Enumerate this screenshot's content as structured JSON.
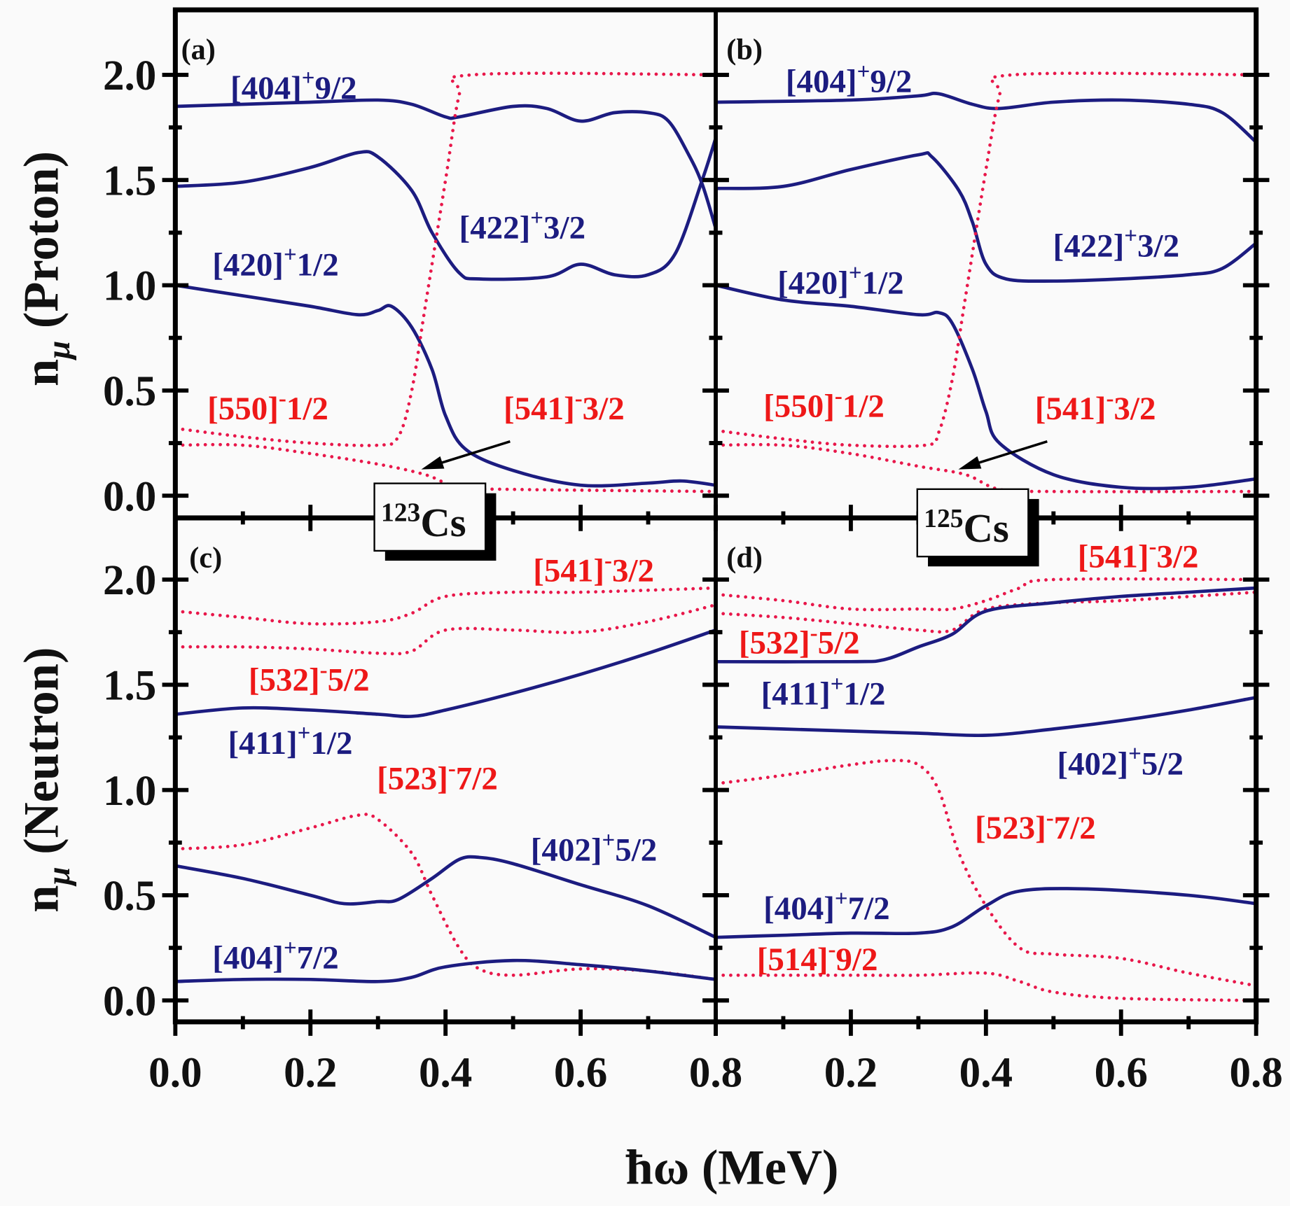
{
  "colors": {
    "proton_positive": "#1c1c80",
    "negative": "#ee1818",
    "dotted": "#e8174a"
  },
  "chart_data": [
    {
      "type": "line",
      "panel": "(a)",
      "nucleus": "123Cs",
      "ylabel": "n_μ (Proton)",
      "xlabel": "ħω (MeV)",
      "xlim": [
        0,
        0.8
      ],
      "ylim": [
        -0.1,
        2.3
      ],
      "xticks": [
        "0.0",
        "0.2",
        "0.4",
        "0.6",
        "0.8"
      ],
      "yticks": [
        "0.0",
        "0.5",
        "1.0",
        "1.5",
        "2.0"
      ],
      "series": [
        {
          "name": "[404]+9/2",
          "style": "solid",
          "x": [
            0,
            0.1,
            0.2,
            0.3,
            0.35,
            0.4,
            0.42,
            0.5,
            0.55,
            0.6,
            0.65,
            0.7,
            0.73,
            0.76,
            0.78,
            0.8
          ],
          "y": [
            1.85,
            1.86,
            1.87,
            1.88,
            1.86,
            1.8,
            1.8,
            1.85,
            1.84,
            1.78,
            1.82,
            1.82,
            1.78,
            1.62,
            1.48,
            1.27
          ]
        },
        {
          "name": "[422]+3/2",
          "style": "solid",
          "x": [
            0,
            0.1,
            0.2,
            0.27,
            0.3,
            0.35,
            0.38,
            0.42,
            0.45,
            0.55,
            0.6,
            0.65,
            0.7,
            0.74,
            0.78,
            0.8
          ],
          "y": [
            1.47,
            1.49,
            1.56,
            1.63,
            1.61,
            1.45,
            1.25,
            1.06,
            1.03,
            1.04,
            1.1,
            1.05,
            1.05,
            1.15,
            1.5,
            1.7
          ]
        },
        {
          "name": "[420]+1/2",
          "style": "solid",
          "x": [
            0,
            0.1,
            0.2,
            0.27,
            0.3,
            0.32,
            0.35,
            0.38,
            0.4,
            0.43,
            0.5,
            0.6,
            0.7,
            0.75,
            0.8
          ],
          "y": [
            1.0,
            0.95,
            0.9,
            0.86,
            0.88,
            0.9,
            0.8,
            0.6,
            0.38,
            0.22,
            0.12,
            0.05,
            0.06,
            0.07,
            0.05
          ]
        },
        {
          "name": "[550]-1/2",
          "style": "dotted",
          "x": [
            0,
            0.1,
            0.2,
            0.3,
            0.33,
            0.35,
            0.37,
            0.4,
            0.42,
            0.44,
            0.8
          ],
          "y": [
            0.32,
            0.28,
            0.25,
            0.24,
            0.28,
            0.5,
            0.9,
            1.5,
            1.9,
            2.0,
            2.0
          ]
        },
        {
          "name": "[541]-3/2",
          "style": "dotted",
          "x": [
            0,
            0.1,
            0.2,
            0.3,
            0.37,
            0.42,
            0.5,
            0.8
          ],
          "y": [
            0.24,
            0.24,
            0.2,
            0.15,
            0.1,
            0.04,
            0.03,
            0.02
          ]
        }
      ],
      "labels": [
        {
          "base": "[404]",
          "sup": "+",
          "rest": "9/2"
        },
        {
          "base": "[422]",
          "sup": "+",
          "rest": "3/2"
        },
        {
          "base": "[420]",
          "sup": "+",
          "rest": "1/2"
        },
        {
          "base": "[550]",
          "sup": "-",
          "rest": "1/2"
        },
        {
          "base": "[541]",
          "sup": "-",
          "rest": "3/2"
        }
      ]
    },
    {
      "type": "line",
      "panel": "(b)",
      "nucleus": "125Cs",
      "xlim": [
        0,
        0.8
      ],
      "ylim": [
        -0.1,
        2.3
      ],
      "series": [
        {
          "name": "[404]+9/2",
          "style": "solid",
          "x": [
            0,
            0.2,
            0.3,
            0.33,
            0.38,
            0.42,
            0.5,
            0.6,
            0.7,
            0.75,
            0.8
          ],
          "y": [
            1.87,
            1.88,
            1.9,
            1.91,
            1.86,
            1.84,
            1.87,
            1.88,
            1.86,
            1.82,
            1.68
          ]
        },
        {
          "name": "[422]+3/2",
          "style": "solid",
          "x": [
            0,
            0.1,
            0.2,
            0.3,
            0.32,
            0.36,
            0.38,
            0.4,
            0.43,
            0.5,
            0.6,
            0.7,
            0.75,
            0.8
          ],
          "y": [
            1.46,
            1.47,
            1.55,
            1.62,
            1.61,
            1.45,
            1.3,
            1.1,
            1.03,
            1.02,
            1.03,
            1.05,
            1.08,
            1.2
          ]
        },
        {
          "name": "[420]+1/2",
          "style": "solid",
          "x": [
            0,
            0.1,
            0.2,
            0.3,
            0.33,
            0.35,
            0.38,
            0.4,
            0.42,
            0.5,
            0.6,
            0.7,
            0.8
          ],
          "y": [
            1.0,
            0.93,
            0.9,
            0.86,
            0.87,
            0.82,
            0.6,
            0.4,
            0.25,
            0.1,
            0.04,
            0.04,
            0.08
          ]
        },
        {
          "name": "[550]-1/2",
          "style": "dotted",
          "x": [
            0,
            0.1,
            0.2,
            0.31,
            0.33,
            0.35,
            0.37,
            0.4,
            0.42,
            0.44,
            0.8
          ],
          "y": [
            0.31,
            0.27,
            0.24,
            0.24,
            0.3,
            0.55,
            0.95,
            1.55,
            1.9,
            2.0,
            2.0
          ]
        },
        {
          "name": "[541]-3/2",
          "style": "dotted",
          "x": [
            0,
            0.1,
            0.2,
            0.3,
            0.37,
            0.42,
            0.5,
            0.8
          ],
          "y": [
            0.24,
            0.24,
            0.2,
            0.14,
            0.1,
            0.03,
            0.02,
            0.02
          ]
        }
      ],
      "labels": [
        {
          "base": "[404]",
          "sup": "+",
          "rest": "9/2"
        },
        {
          "base": "[422]",
          "sup": "+",
          "rest": "3/2"
        },
        {
          "base": "[420]",
          "sup": "+",
          "rest": "1/2"
        },
        {
          "base": "[550]",
          "sup": "-",
          "rest": "1/2"
        },
        {
          "base": "[541]",
          "sup": "-",
          "rest": "3/2"
        }
      ]
    },
    {
      "type": "line",
      "panel": "(c)",
      "nucleus": "123Cs",
      "ylabel": "n_μ (Neutron)",
      "xlim": [
        0,
        0.8
      ],
      "ylim": [
        -0.1,
        2.3
      ],
      "series": [
        {
          "name": "[541]-3/2",
          "style": "dotted",
          "x": [
            0,
            0.1,
            0.2,
            0.3,
            0.35,
            0.4,
            0.5,
            0.6,
            0.8
          ],
          "y": [
            1.85,
            1.82,
            1.79,
            1.8,
            1.84,
            1.92,
            1.94,
            1.94,
            1.96
          ]
        },
        {
          "name": "[532]-5/2",
          "style": "dotted",
          "x": [
            0,
            0.1,
            0.2,
            0.3,
            0.35,
            0.4,
            0.5,
            0.6,
            0.7,
            0.8
          ],
          "y": [
            1.68,
            1.68,
            1.67,
            1.65,
            1.66,
            1.76,
            1.76,
            1.75,
            1.8,
            1.88
          ]
        },
        {
          "name": "[411]+1/2",
          "style": "solid",
          "x": [
            0,
            0.1,
            0.2,
            0.3,
            0.35,
            0.4,
            0.5,
            0.6,
            0.7,
            0.8
          ],
          "y": [
            1.36,
            1.39,
            1.38,
            1.36,
            1.35,
            1.38,
            1.46,
            1.55,
            1.65,
            1.76
          ]
        },
        {
          "name": "[523]-7/2",
          "style": "dotted",
          "x": [
            0,
            0.1,
            0.2,
            0.27,
            0.3,
            0.35,
            0.38,
            0.42,
            0.45,
            0.5,
            0.6,
            0.7,
            0.8
          ],
          "y": [
            0.72,
            0.74,
            0.82,
            0.88,
            0.86,
            0.7,
            0.5,
            0.25,
            0.15,
            0.12,
            0.15,
            0.14,
            0.1
          ]
        },
        {
          "name": "[402]+5/2",
          "style": "solid",
          "x": [
            0,
            0.1,
            0.2,
            0.25,
            0.3,
            0.33,
            0.38,
            0.42,
            0.45,
            0.5,
            0.6,
            0.7,
            0.8
          ],
          "y": [
            0.64,
            0.58,
            0.5,
            0.46,
            0.47,
            0.48,
            0.58,
            0.67,
            0.68,
            0.65,
            0.55,
            0.45,
            0.3
          ]
        },
        {
          "name": "[404]+7/2",
          "style": "solid",
          "x": [
            0,
            0.1,
            0.2,
            0.3,
            0.35,
            0.4,
            0.5,
            0.6,
            0.7,
            0.8
          ],
          "y": [
            0.09,
            0.1,
            0.1,
            0.09,
            0.11,
            0.16,
            0.19,
            0.17,
            0.14,
            0.1
          ]
        }
      ],
      "labels": [
        {
          "base": "[541]",
          "sup": "-",
          "rest": "3/2"
        },
        {
          "base": "[532]",
          "sup": "-",
          "rest": "5/2"
        },
        {
          "base": "[411]",
          "sup": "+",
          "rest": "1/2"
        },
        {
          "base": "[523]",
          "sup": "-",
          "rest": "7/2"
        },
        {
          "base": "[402]",
          "sup": "+",
          "rest": "5/2"
        },
        {
          "base": "[404]",
          "sup": "+",
          "rest": "7/2"
        }
      ]
    },
    {
      "type": "line",
      "panel": "(d)",
      "nucleus": "125Cs",
      "xlim": [
        0,
        0.8
      ],
      "ylim": [
        -0.1,
        2.3
      ],
      "series": [
        {
          "name": "[541]-3/2",
          "style": "dotted",
          "x": [
            0,
            0.1,
            0.2,
            0.3,
            0.35,
            0.4,
            0.45,
            0.5,
            0.8
          ],
          "y": [
            1.93,
            1.9,
            1.86,
            1.86,
            1.86,
            1.9,
            1.96,
            2.0,
            2.0
          ]
        },
        {
          "name": "[532]-5/2",
          "style": "dotted",
          "x": [
            0,
            0.1,
            0.2,
            0.3,
            0.35,
            0.4,
            0.5,
            0.6,
            0.8
          ],
          "y": [
            1.84,
            1.82,
            1.79,
            1.76,
            1.76,
            1.86,
            1.89,
            1.9,
            1.94
          ]
        },
        {
          "name": "[411]+1/2",
          "style": "solid",
          "x": [
            0,
            0.2,
            0.25,
            0.3,
            0.35,
            0.4,
            0.5,
            0.6,
            0.7,
            0.8
          ],
          "y": [
            1.61,
            1.61,
            1.62,
            1.68,
            1.74,
            1.85,
            1.89,
            1.92,
            1.94,
            1.96
          ]
        },
        {
          "name": "[402]+5/2",
          "style": "solid",
          "x": [
            0,
            0.1,
            0.2,
            0.3,
            0.4,
            0.5,
            0.6,
            0.7,
            0.8
          ],
          "y": [
            1.3,
            1.29,
            1.28,
            1.27,
            1.26,
            1.29,
            1.33,
            1.38,
            1.44
          ]
        },
        {
          "name": "[523]-7/2",
          "style": "dotted",
          "x": [
            0,
            0.1,
            0.2,
            0.26,
            0.3,
            0.33,
            0.36,
            0.4,
            0.45,
            0.5,
            0.6,
            0.7,
            0.8
          ],
          "y": [
            1.03,
            1.07,
            1.12,
            1.14,
            1.12,
            1.0,
            0.7,
            0.45,
            0.25,
            0.22,
            0.2,
            0.13,
            0.07
          ]
        },
        {
          "name": "[404]+7/2",
          "style": "solid",
          "x": [
            0,
            0.1,
            0.2,
            0.3,
            0.35,
            0.4,
            0.45,
            0.55,
            0.7,
            0.8
          ],
          "y": [
            0.3,
            0.31,
            0.32,
            0.32,
            0.35,
            0.45,
            0.52,
            0.53,
            0.5,
            0.46
          ]
        },
        {
          "name": "[514]-9/2",
          "style": "dotted",
          "x": [
            0,
            0.1,
            0.2,
            0.3,
            0.4,
            0.45,
            0.5,
            0.6,
            0.8
          ],
          "y": [
            0.12,
            0.12,
            0.12,
            0.12,
            0.13,
            0.09,
            0.04,
            0.01,
            0.0
          ]
        }
      ],
      "labels": [
        {
          "base": "[541]",
          "sup": "-",
          "rest": "3/2"
        },
        {
          "base": "[532]",
          "sup": "-",
          "rest": "5/2"
        },
        {
          "base": "[411]",
          "sup": "+",
          "rest": "1/2"
        },
        {
          "base": "[402]",
          "sup": "+",
          "rest": "5/2"
        },
        {
          "base": "[523]",
          "sup": "-",
          "rest": "7/2"
        },
        {
          "base": "[404]",
          "sup": "+",
          "rest": "7/2"
        },
        {
          "base": "[514]",
          "sup": "-",
          "rest": "9/2"
        }
      ]
    }
  ],
  "nuclei": [
    {
      "mass": "123",
      "symbol": "Cs"
    },
    {
      "mass": "125",
      "symbol": "Cs"
    }
  ],
  "axes": {
    "y_top": {
      "main": "n",
      "sub": "μ",
      "rest": " (Proton)"
    },
    "y_bottom": {
      "main": "n",
      "sub": "μ",
      "rest": " (Neutron)"
    },
    "x": "ħω (MeV)"
  },
  "panel_tags": [
    "(a)",
    "(b)",
    "(c)",
    "(d)"
  ],
  "xticks": [
    "0.0",
    "0.2",
    "0.4",
    "0.6",
    "0.8"
  ],
  "yticks": [
    "0.0",
    "0.5",
    "1.0",
    "1.5",
    "2.0"
  ]
}
